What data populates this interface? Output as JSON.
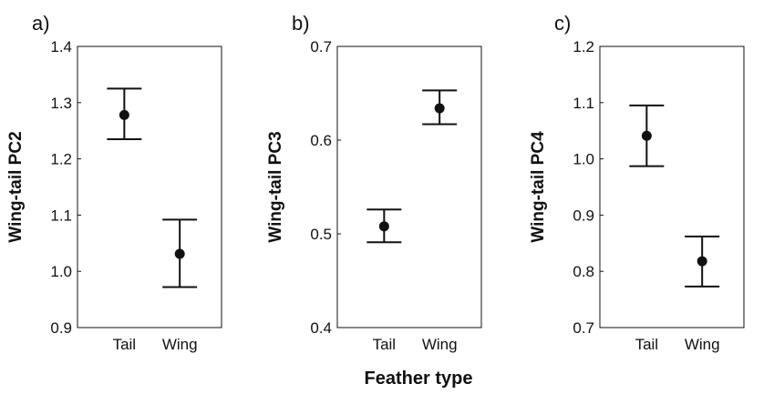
{
  "chart_data": {
    "type": "errorbar",
    "xlabel": "Feather type",
    "panels": [
      {
        "letter": "a)",
        "ylabel": "Wing-tail PC2",
        "categories": [
          "Tail",
          "Wing"
        ],
        "ylim": [
          0.9,
          1.4
        ],
        "yticks": [
          "0.9",
          "1.0",
          "1.1",
          "1.2",
          "1.3",
          "1.4"
        ],
        "points": [
          {
            "category": "Tail",
            "mean": 1.278,
            "lower": 1.235,
            "upper": 1.325
          },
          {
            "category": "Wing",
            "mean": 1.031,
            "lower": 0.972,
            "upper": 1.092
          }
        ]
      },
      {
        "letter": "b)",
        "ylabel": "Wing-tail PC3",
        "categories": [
          "Tail",
          "Wing"
        ],
        "ylim": [
          0.4,
          0.7
        ],
        "yticks": [
          "0.4",
          "0.5",
          "0.6",
          "0.7"
        ],
        "points": [
          {
            "category": "Tail",
            "mean": 0.508,
            "lower": 0.491,
            "upper": 0.526
          },
          {
            "category": "Wing",
            "mean": 0.634,
            "lower": 0.617,
            "upper": 0.653
          }
        ]
      },
      {
        "letter": "c)",
        "ylabel": "Wing-tail PC4",
        "categories": [
          "Tail",
          "Wing"
        ],
        "ylim": [
          0.7,
          1.2
        ],
        "yticks": [
          "0.7",
          "0.8",
          "0.9",
          "1.0",
          "1.1",
          "1.2"
        ],
        "points": [
          {
            "category": "Tail",
            "mean": 1.041,
            "lower": 0.987,
            "upper": 1.095
          },
          {
            "category": "Wing",
            "mean": 0.818,
            "lower": 0.773,
            "upper": 0.862
          }
        ]
      }
    ]
  }
}
